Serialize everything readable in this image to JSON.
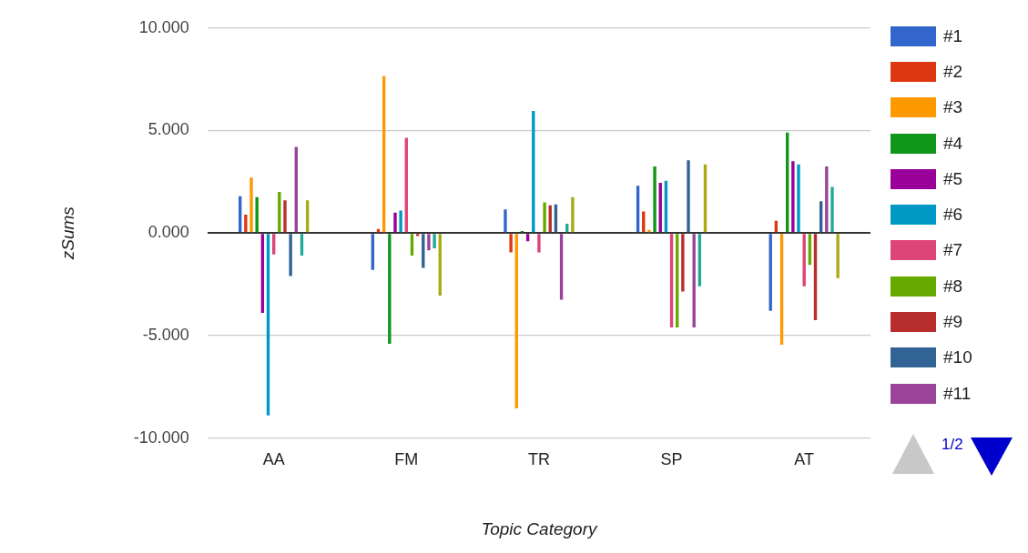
{
  "chart_data": {
    "type": "bar",
    "xlabel": "Topic Category",
    "ylabel": "zSums",
    "categories": [
      "AA",
      "FM",
      "TR",
      "SP",
      "AT"
    ],
    "ylim": [
      -10,
      10
    ],
    "yticks": [
      {
        "value": -10,
        "label": "-10.000"
      },
      {
        "value": -5,
        "label": "-5.000"
      },
      {
        "value": 0,
        "label": "0.000"
      },
      {
        "value": 5,
        "label": "5.000"
      },
      {
        "value": 10,
        "label": "10.000"
      }
    ],
    "grid": "y",
    "legend": "right",
    "annotations": [
      "1/2"
    ],
    "series": [
      {
        "name": "#1",
        "color": "#3366cc",
        "values": [
          1.8,
          -1.8,
          1.15,
          2.3,
          -3.8
        ]
      },
      {
        "name": "#2",
        "color": "#dc3912",
        "values": [
          0.9,
          0.2,
          -0.95,
          1.05,
          0.6
        ]
      },
      {
        "name": "#3",
        "color": "#ff9900",
        "values": [
          2.7,
          7.65,
          -8.55,
          0.15,
          -5.45
        ]
      },
      {
        "name": "#4",
        "color": "#109618",
        "values": [
          1.75,
          -5.4,
          0.1,
          3.25,
          4.9
        ]
      },
      {
        "name": "#5",
        "color": "#990099",
        "values": [
          -3.9,
          1.0,
          -0.4,
          2.45,
          3.5
        ]
      },
      {
        "name": "#6",
        "color": "#0099c6",
        "values": [
          -8.9,
          1.1,
          5.95,
          2.55,
          3.35
        ]
      },
      {
        "name": "#7",
        "color": "#dd4477",
        "values": [
          -1.05,
          4.65,
          -0.95,
          -4.6,
          -2.6
        ]
      },
      {
        "name": "#8",
        "color": "#66aa00",
        "values": [
          2.0,
          -1.1,
          1.5,
          -4.6,
          -1.55
        ]
      },
      {
        "name": "#9",
        "color": "#b82e2e",
        "values": [
          1.6,
          -0.15,
          1.35,
          -2.85,
          -4.25
        ]
      },
      {
        "name": "#10",
        "color": "#316395",
        "values": [
          -2.1,
          -1.7,
          1.4,
          3.55,
          1.55
        ]
      },
      {
        "name": "#11",
        "color": "#994499",
        "values": [
          4.2,
          -0.85,
          -3.25,
          -4.6,
          3.25
        ]
      },
      {
        "color": "#22aa99",
        "values": [
          -1.1,
          -0.75,
          0.45,
          -2.6,
          2.25
        ]
      },
      {
        "color": "#aaaa11",
        "values": [
          1.6,
          -3.05,
          1.75,
          3.35,
          -2.2
        ]
      }
    ]
  }
}
